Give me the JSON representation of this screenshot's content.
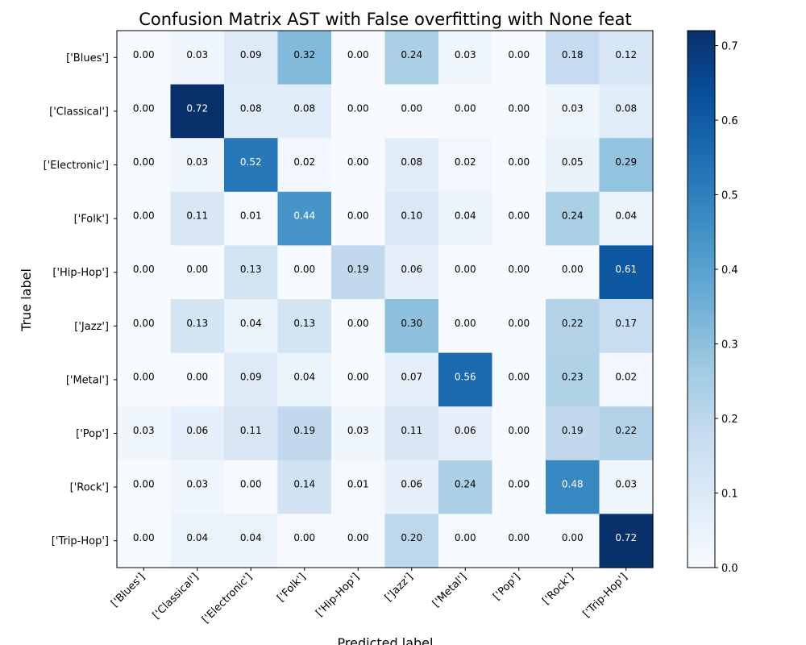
{
  "chart_data": {
    "type": "heatmap",
    "title": "Confusion Matrix AST with False overfitting with None feat",
    "xlabel": "Predicted label",
    "ylabel": "True label",
    "row_labels": [
      "['Blues']",
      "['Classical']",
      "['Electronic']",
      "['Folk']",
      "['Hip-Hop']",
      "['Jazz']",
      "['Metal']",
      "['Pop']",
      "['Rock']",
      "['Trip-Hop']"
    ],
    "col_labels": [
      "['Blues']",
      "['Classical']",
      "['Electronic']",
      "['Folk']",
      "['Hip-Hop']",
      "['Jazz']",
      "['Metal']",
      "['Pop']",
      "['Rock']",
      "['Trip-Hop']"
    ],
    "matrix": [
      [
        0.0,
        0.03,
        0.09,
        0.32,
        0.0,
        0.24,
        0.03,
        0.0,
        0.18,
        0.12
      ],
      [
        0.0,
        0.72,
        0.08,
        0.08,
        0.0,
        0.0,
        0.0,
        0.0,
        0.03,
        0.08
      ],
      [
        0.0,
        0.03,
        0.52,
        0.02,
        0.0,
        0.08,
        0.02,
        0.0,
        0.05,
        0.29
      ],
      [
        0.0,
        0.11,
        0.01,
        0.44,
        0.0,
        0.1,
        0.04,
        0.0,
        0.24,
        0.04
      ],
      [
        0.0,
        0.0,
        0.13,
        0.0,
        0.19,
        0.06,
        0.0,
        0.0,
        0.0,
        0.61
      ],
      [
        0.0,
        0.13,
        0.04,
        0.13,
        0.0,
        0.3,
        0.0,
        0.0,
        0.22,
        0.17
      ],
      [
        0.0,
        0.0,
        0.09,
        0.04,
        0.0,
        0.07,
        0.56,
        0.0,
        0.23,
        0.02
      ],
      [
        0.03,
        0.06,
        0.11,
        0.19,
        0.03,
        0.11,
        0.06,
        0.0,
        0.19,
        0.22
      ],
      [
        0.0,
        0.03,
        0.0,
        0.14,
        0.01,
        0.06,
        0.24,
        0.0,
        0.48,
        0.03
      ],
      [
        0.0,
        0.04,
        0.04,
        0.0,
        0.0,
        0.2,
        0.0,
        0.0,
        0.0,
        0.72
      ]
    ],
    "colorbar": {
      "min": 0.0,
      "max": 0.72,
      "ticks": [
        0.0,
        0.1,
        0.2,
        0.3,
        0.4,
        0.5,
        0.6,
        0.7
      ],
      "colormap": "Blues"
    },
    "grid": false,
    "legend": "colorbar-right"
  }
}
